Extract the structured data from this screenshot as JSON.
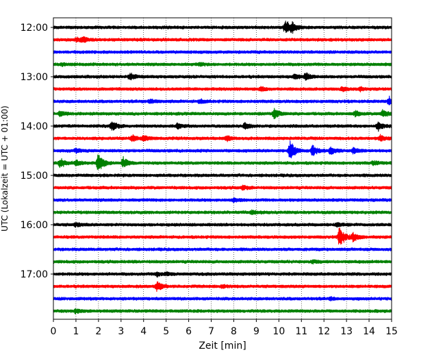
{
  "chart_data": {
    "type": "line",
    "subtype": "helicorder",
    "xlabel": "Zeit  [min]",
    "ylabel": "UTC (Lokalzeit = UTC + 01:00)",
    "xlim": [
      0,
      15
    ],
    "x_ticks": [
      "0",
      "1",
      "2",
      "3",
      "4",
      "5",
      "6",
      "7",
      "8",
      "9",
      "10",
      "11",
      "12",
      "13",
      "14",
      "15"
    ],
    "y_tick_labels": [
      "12:00",
      "13:00",
      "14:00",
      "15:00",
      "16:00",
      "17:00"
    ],
    "grid": "vertical dotted at every minute",
    "trace_colors": [
      "#000000",
      "#ff0000",
      "#0000ff",
      "#008000"
    ],
    "traces": [
      {
        "start": "12:00",
        "color": "#000000",
        "events": [
          {
            "t": 10.3,
            "amp": 13
          },
          {
            "t": 10.6,
            "amp": 6
          }
        ]
      },
      {
        "start": "12:15",
        "color": "#ff0000",
        "events": [
          {
            "t": 1.3,
            "amp": 4
          },
          {
            "t": 1.0,
            "amp": 3
          }
        ]
      },
      {
        "start": "12:30",
        "color": "#0000ff",
        "events": []
      },
      {
        "start": "12:45",
        "color": "#008000",
        "events": [
          {
            "t": 0.4,
            "amp": 2
          },
          {
            "t": 6.5,
            "amp": 2
          }
        ]
      },
      {
        "start": "13:00",
        "color": "#000000",
        "events": [
          {
            "t": 3.4,
            "amp": 5
          },
          {
            "t": 10.7,
            "amp": 4
          },
          {
            "t": 11.2,
            "amp": 5
          }
        ]
      },
      {
        "start": "13:15",
        "color": "#ff0000",
        "events": [
          {
            "t": 9.2,
            "amp": 3
          },
          {
            "t": 12.8,
            "amp": 3
          },
          {
            "t": 13.6,
            "amp": 3
          }
        ]
      },
      {
        "start": "13:30",
        "color": "#0000ff",
        "events": [
          {
            "t": 4.3,
            "amp": 3
          },
          {
            "t": 6.5,
            "amp": 3
          },
          {
            "t": 14.9,
            "amp": 6
          }
        ]
      },
      {
        "start": "13:45",
        "color": "#008000",
        "events": [
          {
            "t": 0.3,
            "amp": 4
          },
          {
            "t": 9.8,
            "amp": 9
          },
          {
            "t": 13.4,
            "amp": 4
          },
          {
            "t": 14.6,
            "amp": 6
          }
        ]
      },
      {
        "start": "14:00",
        "color": "#000000",
        "events": [
          {
            "t": 2.6,
            "amp": 8
          },
          {
            "t": 5.5,
            "amp": 4
          },
          {
            "t": 8.5,
            "amp": 5
          },
          {
            "t": 14.4,
            "amp": 7
          }
        ]
      },
      {
        "start": "14:15",
        "color": "#ff0000",
        "events": [
          {
            "t": 3.5,
            "amp": 6
          },
          {
            "t": 4.0,
            "amp": 4
          },
          {
            "t": 7.7,
            "amp": 4
          },
          {
            "t": 14.5,
            "amp": 4
          }
        ]
      },
      {
        "start": "14:30",
        "color": "#0000ff",
        "events": [
          {
            "t": 1.0,
            "amp": 3
          },
          {
            "t": 10.5,
            "amp": 18
          },
          {
            "t": 11.5,
            "amp": 9
          },
          {
            "t": 12.3,
            "amp": 6
          },
          {
            "t": 13.3,
            "amp": 4
          }
        ]
      },
      {
        "start": "14:45",
        "color": "#008000",
        "events": [
          {
            "t": 0.3,
            "amp": 7
          },
          {
            "t": 1.0,
            "amp": 4
          },
          {
            "t": 2.0,
            "amp": 17
          },
          {
            "t": 3.1,
            "amp": 8
          },
          {
            "t": 14.2,
            "amp": 3
          }
        ]
      },
      {
        "start": "15:00",
        "color": "#000000",
        "events": []
      },
      {
        "start": "15:15",
        "color": "#ff0000",
        "events": [
          {
            "t": 8.4,
            "amp": 3
          }
        ]
      },
      {
        "start": "15:30",
        "color": "#0000ff",
        "events": [
          {
            "t": 8.0,
            "amp": 3
          }
        ]
      },
      {
        "start": "15:45",
        "color": "#008000",
        "events": [
          {
            "t": 8.8,
            "amp": 3
          }
        ]
      },
      {
        "start": "16:00",
        "color": "#000000",
        "events": [
          {
            "t": 1.0,
            "amp": 3
          },
          {
            "t": 12.6,
            "amp": 3
          }
        ]
      },
      {
        "start": "16:15",
        "color": "#ff0000",
        "events": [
          {
            "t": 12.7,
            "amp": 18
          },
          {
            "t": 13.3,
            "amp": 7
          }
        ]
      },
      {
        "start": "16:30",
        "color": "#0000ff",
        "events": []
      },
      {
        "start": "16:45",
        "color": "#008000",
        "events": [
          {
            "t": 11.5,
            "amp": 2
          }
        ]
      },
      {
        "start": "17:00",
        "color": "#000000",
        "events": [
          {
            "t": 4.6,
            "amp": 3
          },
          {
            "t": 5.0,
            "amp": 2
          }
        ]
      },
      {
        "start": "17:15",
        "color": "#ff0000",
        "events": [
          {
            "t": 4.6,
            "amp": 8
          },
          {
            "t": 7.5,
            "amp": 2
          }
        ]
      },
      {
        "start": "17:30",
        "color": "#0000ff",
        "events": [
          {
            "t": 12.3,
            "amp": 2
          }
        ]
      },
      {
        "start": "17:45",
        "color": "#008000",
        "events": [
          {
            "t": 1.0,
            "amp": 3
          }
        ]
      }
    ]
  }
}
